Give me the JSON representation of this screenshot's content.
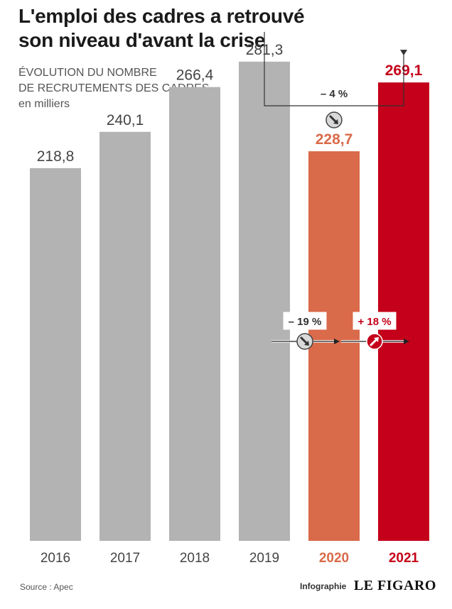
{
  "title_line1": "L'emploi des cadres a retrouvé",
  "title_line2": "son niveau d'avant la crise",
  "subtitle_line1": "ÉVOLUTION DU NOMBRE",
  "subtitle_line2": "DE RECRUTEMENTS DES CADRES",
  "subtitle_line3": "en milliers",
  "source": "Source : Apec",
  "credit_label": "Infographie",
  "credit_brand": "LE FIGARO",
  "chart_data": {
    "type": "bar",
    "categories": [
      "2016",
      "2017",
      "2018",
      "2019",
      "2020",
      "2021"
    ],
    "values": [
      218.8,
      240.1,
      266.4,
      281.3,
      228.7,
      269.1
    ],
    "value_labels": [
      "218,8",
      "240,1",
      "266,4",
      "281,3",
      "228,7",
      "269,1"
    ],
    "colors": [
      "#b3b3b3",
      "#b3b3b3",
      "#b3b3b3",
      "#b3b3b3",
      "#d96a4a",
      "#c4001a"
    ],
    "label_colors": [
      "#444444",
      "#444444",
      "#444444",
      "#444444",
      "#d96a4a",
      "#c4001a"
    ],
    "bold_years": [
      "2020",
      "2021"
    ],
    "ylim": [
      0,
      300
    ],
    "annotations": [
      {
        "text": "– 4 %",
        "from": "2019",
        "to": "2021",
        "direction": "down"
      },
      {
        "text": "– 19 %",
        "from": "2019",
        "to": "2020",
        "direction": "down"
      },
      {
        "text": "+ 18 %",
        "from": "2020",
        "to": "2021",
        "direction": "up"
      }
    ]
  }
}
